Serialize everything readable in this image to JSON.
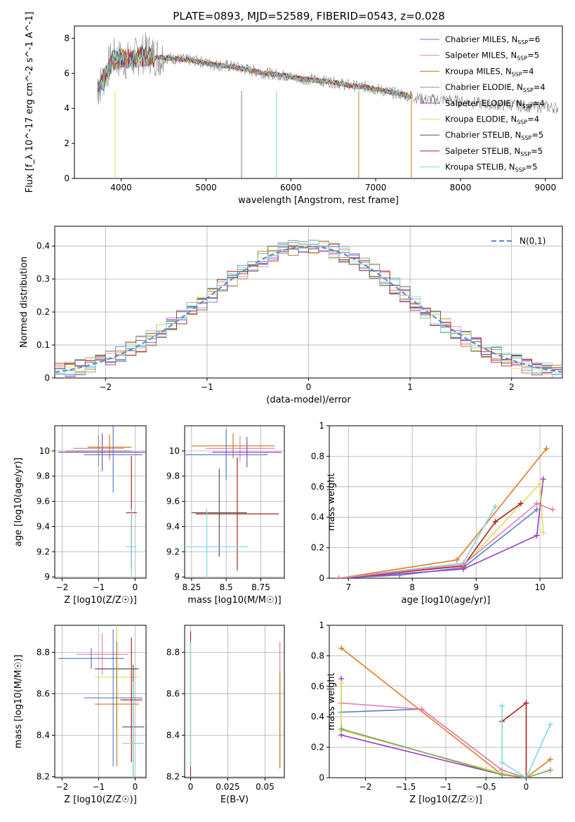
{
  "figure_title": "PLATE=0893, MJD=52589, FIBERID=0543, z=0.028",
  "colors": {
    "cm": "#5b7fd0",
    "sm": "#e87fb0",
    "km": "#c47a1d",
    "ce": "#7aa26a",
    "se": "#9b3fc0",
    "ke": "#d8e05a",
    "cs": "#555555",
    "ss": "#b22222",
    "ks": "#7dd9dd",
    "data": "#808080",
    "gauss": "#5b8bd6",
    "orange": "#e07b22"
  },
  "legend_spectrum": [
    "Chabrier MILES, N_SSP=6",
    "Salpeter MILES, N_SSP=5",
    "Kroupa MILES, N_SSP=4",
    "Chabrier ELODIE, N_SSP=4",
    "Salpeter ELODIE, N_SSP=4",
    "Kroupa ELODIE, N_SSP=4",
    "Chabrier STELIB, N_SSP=5",
    "Salpeter STELIB, N_SSP=5",
    "Kroupa STELIB, N_SSP=5"
  ],
  "chart_data": [
    {
      "type": "line",
      "title": "PLATE=0893, MJD=52589, FIBERID=0543, z=0.028",
      "xlabel": "wavelength [Angstrom, rest frame]",
      "ylabel": "Flux [f_λ 10^-17 erg cm^-2 s^-1 A^-1]",
      "xlim": [
        3450,
        9200
      ],
      "ylim": [
        0,
        8.7
      ],
      "xticks": [
        4000,
        5000,
        6000,
        7000,
        8000,
        9000
      ],
      "yticks": [
        0,
        2,
        4,
        6,
        8
      ],
      "series": [
        {
          "name": "data",
          "color": "#808080",
          "x": [
            3720,
            3800,
            3900,
            4000,
            4100,
            4200,
            4300,
            4400,
            4500,
            4700,
            4900,
            5100,
            5300,
            5500,
            5700,
            5900,
            6100,
            6300,
            6500,
            6700,
            6900,
            7100,
            7300,
            7400,
            7600,
            7800,
            8000,
            8200,
            8400,
            8600,
            8800,
            9000,
            9150
          ],
          "y": [
            5.0,
            5.8,
            6.9,
            6.8,
            6.7,
            7.0,
            7.2,
            7.0,
            6.9,
            6.8,
            6.7,
            6.5,
            6.4,
            6.2,
            6.0,
            5.9,
            5.7,
            5.6,
            5.5,
            5.3,
            5.2,
            5.0,
            4.8,
            4.7,
            4.5,
            4.5,
            4.4,
            4.3,
            4.2,
            4.2,
            4.1,
            4.1,
            4.0
          ]
        },
        {
          "name": "model",
          "color": "#7dd9dd",
          "x": [
            3720,
            3800,
            3900,
            4000,
            4100,
            4200,
            4300,
            4400,
            4500,
            4700,
            4900,
            5100,
            5300,
            5500,
            5700,
            5900,
            6100,
            6300,
            6500,
            6700,
            6900,
            7100,
            7300,
            7400
          ],
          "y": [
            5.0,
            5.7,
            6.7,
            6.9,
            6.8,
            6.9,
            7.0,
            6.9,
            6.9,
            6.8,
            6.7,
            6.5,
            6.4,
            6.2,
            6.0,
            5.9,
            5.7,
            5.6,
            5.5,
            5.3,
            5.2,
            5.0,
            4.8,
            4.7
          ]
        }
      ]
    },
    {
      "type": "line",
      "xlabel": "(data-model)/error",
      "ylabel": "Normed distribution",
      "xlim": [
        -2.5,
        2.5
      ],
      "ylim": [
        0,
        0.46
      ],
      "xticks": [
        -2,
        -1,
        0,
        1,
        2
      ],
      "yticks": [
        0.0,
        0.1,
        0.2,
        0.3,
        0.4
      ],
      "legend": "N(0,1)",
      "series": [
        {
          "name": "N(0,1)",
          "x": [
            -2.5,
            -2,
            -1.5,
            -1,
            -0.5,
            0,
            0.5,
            1,
            1.5,
            2,
            2.5
          ],
          "y": [
            0.018,
            0.054,
            0.13,
            0.242,
            0.352,
            0.399,
            0.352,
            0.242,
            0.13,
            0.054,
            0.018
          ]
        }
      ]
    },
    {
      "type": "scatter",
      "xlabel": "Z [log10(Z/Z☉)]",
      "ylabel": "age  [log10(age/yr)]",
      "xlim": [
        -2.2,
        0.3
      ],
      "ylim": [
        8.99,
        10.2
      ],
      "xticks": [
        -2,
        -1,
        0
      ],
      "yticks": [
        9.0,
        9.2,
        9.4,
        9.6,
        9.8,
        10.0
      ],
      "points": [
        {
          "x": -1.0,
          "y": 10.02,
          "xerr": 0.7,
          "yerr": 0.1,
          "color": "#e87fb0"
        },
        {
          "x": -0.9,
          "y": 9.99,
          "xerr": 1.2,
          "yerr": 0.15,
          "color": "#9b3fc0"
        },
        {
          "x": -0.7,
          "y": 10.03,
          "xerr": 0.6,
          "yerr": 0.1,
          "color": "#c47a1d"
        },
        {
          "x": -1.0,
          "y": 10.0,
          "xerr": 0.9,
          "yerr": 0.12,
          "color": "#7aa26a"
        },
        {
          "x": -0.6,
          "y": 9.97,
          "xerr": 0.8,
          "yerr": 0.3,
          "color": "#5b7fd0"
        },
        {
          "x": -0.1,
          "y": 9.51,
          "xerr": 0.15,
          "yerr": 0.45,
          "color": "#b22222"
        },
        {
          "x": -0.1,
          "y": 9.24,
          "xerr": 0.15,
          "yerr": 0.3,
          "color": "#7dd9dd"
        }
      ]
    },
    {
      "type": "scatter",
      "xlabel": "mass [log10(M/M☉)]",
      "ylabel": "",
      "xlim": [
        8.2,
        8.92
      ],
      "ylim": [
        8.99,
        10.2
      ],
      "xticks": [
        8.25,
        8.5,
        8.75
      ],
      "yticks": [
        9.0,
        9.2,
        9.4,
        9.6,
        9.8,
        10.0
      ],
      "points": [
        {
          "x": 8.55,
          "y": 10.04,
          "xerr": 0.3,
          "yerr": 0.1,
          "color": "#c47a1d"
        },
        {
          "x": 8.6,
          "y": 10.02,
          "xerr": 0.25,
          "yerr": 0.1,
          "color": "#e87fb0"
        },
        {
          "x": 8.65,
          "y": 9.99,
          "xerr": 0.25,
          "yerr": 0.12,
          "color": "#9b3fc0"
        },
        {
          "x": 8.5,
          "y": 9.97,
          "xerr": 0.3,
          "yerr": 0.2,
          "color": "#5b7fd0"
        },
        {
          "x": 8.45,
          "y": 9.51,
          "xerr": 0.2,
          "yerr": 0.35,
          "color": "#555555"
        },
        {
          "x": 8.58,
          "y": 9.5,
          "xerr": 0.3,
          "yerr": 0.45,
          "color": "#b22222"
        },
        {
          "x": 8.36,
          "y": 9.24,
          "xerr": 0.3,
          "yerr": 0.3,
          "color": "#7dd9dd"
        }
      ]
    },
    {
      "type": "line",
      "xlabel": "age  [log10(age/yr)]",
      "ylabel": "mass weight",
      "xlim": [
        6.7,
        10.35
      ],
      "ylim": [
        0,
        1.0
      ],
      "xticks": [
        7,
        8,
        9,
        10
      ],
      "yticks": [
        0.0,
        0.2,
        0.4,
        0.6,
        0.8,
        1.0
      ],
      "series": [
        {
          "name": "Chabrier MILES",
          "color": "#5b7fd0",
          "x": [
            6.85,
            7.8,
            8.8,
            9.95
          ],
          "y": [
            0.0,
            0.02,
            0.07,
            0.45
          ]
        },
        {
          "name": "Kroupa MILES",
          "color": "#e07b22",
          "x": [
            6.85,
            8.7,
            10.1
          ],
          "y": [
            0.0,
            0.12,
            0.85
          ]
        },
        {
          "name": "Salpeter ELODIE",
          "color": "#9b3fc0",
          "x": [
            6.85,
            8.8,
            9.95,
            10.05
          ],
          "y": [
            0.0,
            0.06,
            0.28,
            0.65
          ]
        },
        {
          "name": "Kroupa ELODIE",
          "color": "#d8e05a",
          "x": [
            6.85,
            8.8,
            10.0,
            10.05
          ],
          "y": [
            0.0,
            0.08,
            0.62,
            0.3
          ]
        },
        {
          "name": "Salpeter STELIB",
          "color": "#b22222",
          "x": [
            6.85,
            8.8,
            9.3,
            9.7
          ],
          "y": [
            0.0,
            0.08,
            0.37,
            0.49
          ]
        },
        {
          "name": "Kroupa STELIB",
          "color": "#7dd9dd",
          "x": [
            6.85,
            8.8,
            9.3
          ],
          "y": [
            0.0,
            0.1,
            0.47
          ]
        },
        {
          "name": "Salpeter MILES",
          "color": "#e87fb0",
          "x": [
            6.85,
            8.8,
            9.95,
            10.2
          ],
          "y": [
            0.0,
            0.09,
            0.49,
            0.45
          ]
        }
      ]
    },
    {
      "type": "scatter",
      "xlabel": "Z [log10(Z/Z☉)]",
      "ylabel": "mass [log10(M/M☉)]",
      "xlim": [
        -2.2,
        0.3
      ],
      "ylim": [
        8.195,
        8.93
      ],
      "xticks": [
        -2,
        -1,
        0
      ],
      "yticks": [
        8.2,
        8.4,
        8.6,
        8.8
      ],
      "points": [
        {
          "x": -1.2,
          "y": 8.77,
          "xerr": 0.9,
          "yerr": 0.05,
          "color": "#5b7fd0"
        },
        {
          "x": -0.9,
          "y": 8.79,
          "xerr": 0.7,
          "yerr": 0.1,
          "color": "#e87fb0"
        },
        {
          "x": -0.5,
          "y": 8.72,
          "xerr": 0.6,
          "yerr": 0.3,
          "color": "#555555"
        },
        {
          "x": -0.5,
          "y": 8.68,
          "xerr": 0.6,
          "yerr": 0.3,
          "color": "#d8e05a"
        },
        {
          "x": -0.6,
          "y": 8.58,
          "xerr": 0.8,
          "yerr": 0.33,
          "color": "#5b7fd0"
        },
        {
          "x": -0.5,
          "y": 8.55,
          "xerr": 0.6,
          "yerr": 0.3,
          "color": "#c47a1d"
        },
        {
          "x": -0.1,
          "y": 8.57,
          "xerr": 0.3,
          "yerr": 0.3,
          "color": "#b22222"
        },
        {
          "x": -0.05,
          "y": 8.44,
          "xerr": 0.3,
          "yerr": 0.3,
          "color": "#555555"
        },
        {
          "x": -0.05,
          "y": 8.36,
          "xerr": 0.3,
          "yerr": 0.3,
          "color": "#7dd9dd"
        }
      ]
    },
    {
      "type": "scatter",
      "xlabel": "E(B-V)",
      "ylabel": "",
      "xlim": [
        -0.004,
        0.063
      ],
      "ylim": [
        8.195,
        8.93
      ],
      "xticks": [
        0.0,
        0.025,
        0.05
      ],
      "yticks": [
        8.2,
        8.4,
        8.6,
        8.8
      ],
      "points": [
        {
          "x": 0.0,
          "y": 8.55,
          "yerr": 0.35,
          "color": "#b22222"
        },
        {
          "x": 0.0,
          "y": 8.55,
          "yerr": 0.3,
          "color": "#7dd9dd"
        },
        {
          "x": 0.06,
          "y": 8.55,
          "yerr": 0.3,
          "color": "#e87fb0"
        },
        {
          "x": 0.06,
          "y": 8.47,
          "yerr": 0.23,
          "color": "#c47a1d"
        }
      ]
    },
    {
      "type": "line",
      "xlabel": "Z [log10(Z/Z☉)]",
      "ylabel": "mass weight",
      "xlim": [
        -2.45,
        0.45
      ],
      "ylim": [
        0,
        1.0
      ],
      "xticks": [
        -2.0,
        -1.5,
        -1.0,
        -0.5,
        0.0
      ],
      "yticks": [
        0.0,
        0.2,
        0.4,
        0.6,
        0.8,
        1.0
      ],
      "series": [
        {
          "name": "Chabrier MILES",
          "color": "#5b7fd0",
          "x": [
            -2.3,
            -1.3,
            -0.3,
            0.0
          ],
          "y": [
            0.43,
            0.45,
            0.05,
            0.0
          ]
        },
        {
          "name": "Salpeter MILES",
          "color": "#e87fb0",
          "x": [
            -2.3,
            -1.3,
            -0.3,
            0.0
          ],
          "y": [
            0.49,
            0.45,
            0.05,
            0.0
          ]
        },
        {
          "name": "Kroupa MILES",
          "color": "#e07b22",
          "x": [
            -2.3,
            -0.3,
            0.0,
            0.3
          ],
          "y": [
            0.85,
            0.02,
            0.0,
            0.12
          ]
        },
        {
          "name": "Salpeter ELODIE",
          "color": "#9b3fc0",
          "x": [
            -2.3,
            -2.3,
            -0.3,
            0.0
          ],
          "y": [
            0.65,
            0.28,
            0.02,
            0.0
          ]
        },
        {
          "name": "Kroupa ELODIE",
          "color": "#d8e05a",
          "x": [
            -2.3,
            -2.3,
            -0.3,
            0.0
          ],
          "y": [
            0.62,
            0.31,
            0.03,
            0.0
          ]
        },
        {
          "name": "Salpeter STELIB",
          "color": "#b22222",
          "x": [
            -0.3,
            0.0,
            0.0
          ],
          "y": [
            0.37,
            0.49,
            0.0
          ]
        },
        {
          "name": "Kroupa STELIB",
          "color": "#7dd9dd",
          "x": [
            -0.3,
            -0.3,
            0.0,
            0.3
          ],
          "y": [
            0.47,
            0.1,
            0.0,
            0.35
          ]
        },
        {
          "name": "Chabrier ELODIE",
          "color": "#7aa26a",
          "x": [
            -2.3,
            -0.3,
            0.0,
            0.3
          ],
          "y": [
            0.32,
            0.02,
            0.0,
            0.05
          ]
        }
      ]
    }
  ]
}
